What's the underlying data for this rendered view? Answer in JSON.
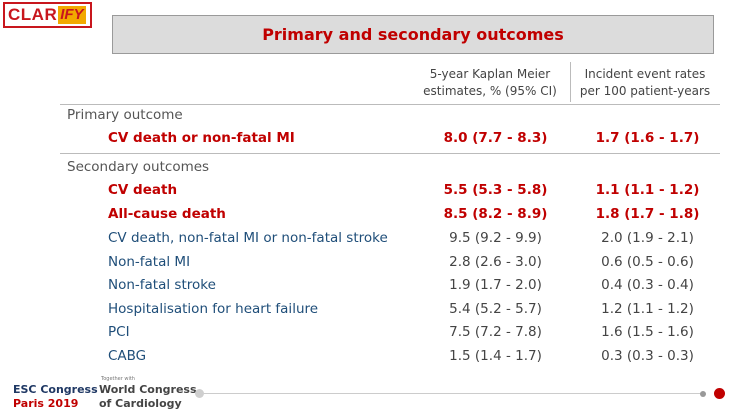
{
  "logo": {
    "part1": "CLAR",
    "part2": "IFY"
  },
  "title": "Primary and secondary outcomes",
  "columns": {
    "col1_line1": "5-year Kaplan Meier",
    "col1_line2": "estimates, % (95% CI)",
    "col2_line1": "Incident event rates",
    "col2_line2": "per 100 patient-years"
  },
  "primary": {
    "label": "Primary outcome",
    "rows": [
      {
        "label": "CV death or non-fatal MI",
        "km": "8.0  (7.7 - 8.3)",
        "rate": "1.7 (1.6 - 1.7)"
      }
    ]
  },
  "secondary": {
    "label": "Secondary outcomes",
    "rows": [
      {
        "label": "CV death",
        "km": "5.5  (5.3 - 5.8)",
        "rate": "1.1 (1.1 - 1.2)"
      },
      {
        "label": "All-cause death",
        "km": "8.5  (8.2 - 8.9)",
        "rate": "1.8 (1.7 - 1.8)"
      },
      {
        "label": "CV death, non-fatal MI or non-fatal stroke",
        "km": "9.5  (9.2 - 9.9)",
        "rate": "2.0 (1.9 - 2.1)"
      },
      {
        "label": "Non-fatal MI",
        "km": "2.8  (2.6 - 3.0)",
        "rate": "0.6 (0.5 - 0.6)"
      },
      {
        "label": "Non-fatal stroke",
        "km": "1.9  (1.7 - 2.0)",
        "rate": "0.4 (0.3 - 0.4)"
      },
      {
        "label": "Hospitalisation for heart failure",
        "km": "5.4  (5.2 - 5.7)",
        "rate": "1.2 (1.1 - 1.2)"
      },
      {
        "label": "PCI",
        "km": "7.5  (7.2 - 7.8)",
        "rate": "1.6 (1.5 - 1.6)"
      },
      {
        "label": "CABG",
        "km": "1.5  (1.4 - 1.7)",
        "rate": "0.3 (0.3 - 0.3)"
      }
    ]
  },
  "footer": {
    "esc_line1": "ESC Congress",
    "esc_line2": "Paris 2019",
    "together": "Together with",
    "wc_line1": "World Congress",
    "wc_line2": "of Cardiology"
  },
  "colors": {
    "accent": "#c00000",
    "label_blue": "#1f4e79",
    "logo_red": "#c8161d",
    "logo_yellow": "#f2a900"
  }
}
